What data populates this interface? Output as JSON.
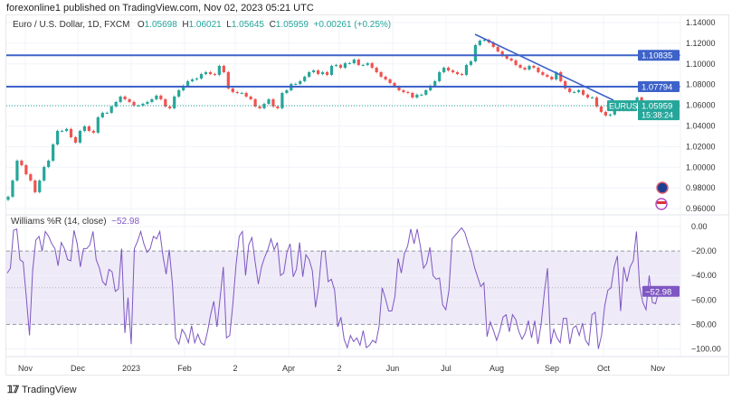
{
  "header": {
    "published": "forexonline1 published on TradingView.com, Nov 02, 2023 05:21 UTC"
  },
  "legend": {
    "symbol": "Euro / U.S. Dollar, 1D, FXCM",
    "o_label": "O",
    "o": "1.05698",
    "h_label": "H",
    "h": "1.06021",
    "l_label": "L",
    "l": "1.05645",
    "c_label": "C",
    "c": "1.05959",
    "change": "+0.00261 (+0.25%)"
  },
  "indicator": {
    "name": "Williams %R (14, close)",
    "value": "−52.98"
  },
  "colors": {
    "up": "#26a69a",
    "down": "#ef5350",
    "level_line": "#3d62c9",
    "wr_line": "#7e57c2",
    "wr_band": "#efeaf8"
  },
  "footer": {
    "brand": "TradingView",
    "logo": "17"
  },
  "chart_data": [
    {
      "type": "candlestick",
      "symbol": "EURUSD",
      "ylim": [
        0.955,
        1.145
      ],
      "y_ticks": [
        "1.14000",
        "1.12000",
        "1.10000",
        "1.08000",
        "1.06000",
        "1.04000",
        "1.02000",
        "1.00000",
        "0.98000",
        "0.96000"
      ],
      "x_ticks": [
        "Nov",
        "Dec",
        "2023",
        "Feb",
        "2",
        "Apr",
        "2",
        "Jun",
        "Jul",
        "Aug",
        "Sep",
        "Oct",
        "Nov"
      ],
      "closes": [
        0.9715,
        0.9872,
        1.0064,
        1.002,
        0.9933,
        0.9872,
        0.9759,
        0.9872,
        1.0003,
        1.0064,
        1.0221,
        1.0352,
        1.0352,
        1.037,
        1.0291,
        1.0239,
        1.0352,
        1.0396,
        1.0352,
        1.0335,
        1.0483,
        1.0527,
        1.0527,
        1.0588,
        1.0632,
        1.0684,
        1.0658,
        1.0632,
        1.0597,
        1.0597,
        1.0614,
        1.0632,
        1.0658,
        1.0693,
        1.0658,
        1.0588,
        1.0571,
        1.0684,
        1.0745,
        1.0789,
        1.0833,
        1.085,
        1.0859,
        1.0902,
        1.092,
        1.0902,
        1.0894,
        1.0981,
        1.092,
        1.0763,
        1.0728,
        1.0719,
        1.0719,
        1.0684,
        1.0658,
        1.0588,
        1.0571,
        1.0614,
        1.0658,
        1.0588,
        1.0571,
        1.0719,
        1.0745,
        1.0806,
        1.0806,
        1.0833,
        1.0876,
        1.092,
        1.0937,
        1.0902,
        1.092,
        1.0894,
        1.0981,
        1.099,
        1.0963,
        1.1007,
        1.1007,
        1.1042,
        1.099,
        1.099,
        1.1007,
        1.0963,
        1.092,
        1.0876,
        1.085,
        1.0815,
        1.078,
        1.0745,
        1.0728,
        1.0719,
        1.0675,
        1.0702,
        1.0702,
        1.0745,
        1.0789,
        1.0833,
        1.092,
        1.0963,
        1.0937,
        1.092,
        1.0902,
        1.0894,
        1.099,
        1.1025,
        1.1182,
        1.1225,
        1.1234,
        1.1208,
        1.1164,
        1.1121,
        1.1077,
        1.1051,
        1.1033,
        1.099,
        1.0963,
        1.0946,
        1.0981,
        1.0963,
        1.092,
        1.0894,
        1.0876,
        1.085,
        1.092,
        1.0833,
        1.0763,
        1.0728,
        1.0728,
        1.0745,
        1.0702,
        1.0675,
        1.0675,
        1.0588,
        1.0536,
        1.0501,
        1.051,
        1.0553,
        1.0588,
        1.0553,
        1.0588,
        1.0632,
        1.0675,
        1.0588,
        1.0571,
        1.0588,
        1.0596
      ],
      "horizontal_levels": [
        {
          "price": 1.10835,
          "label": "1.10835"
        },
        {
          "price": 1.07794,
          "label": "1.07794"
        }
      ],
      "trendline": {
        "from": {
          "date": "Jul",
          "price": 1.13
        },
        "to": {
          "date": "Oct",
          "price": 1.066
        }
      },
      "last_price": {
        "symbol_label": "EURUSD",
        "price": "1.05959",
        "countdown": "15:38:24"
      }
    },
    {
      "type": "line",
      "name": "Williams %R (14, close)",
      "ylim": [
        -100,
        0
      ],
      "y_ticks": [
        "0.00",
        "−20.00",
        "−40.00",
        "−60.00",
        "−80.00",
        "−100.00"
      ],
      "band": [
        -80,
        -20
      ],
      "values": [
        -38,
        -34,
        -3,
        -2,
        -27,
        -29,
        -58,
        -89,
        -36,
        -11,
        -8,
        -20,
        -4,
        -8,
        -14,
        -18,
        -32,
        -13,
        -18,
        -27,
        -28,
        -3,
        -14,
        -33,
        -18,
        -18,
        -15,
        -4,
        -27,
        -34,
        -45,
        -48,
        -35,
        -37,
        -53,
        -51,
        -18,
        -87,
        -58,
        -96,
        -18,
        -12,
        -4,
        -14,
        -21,
        -18,
        -8,
        -10,
        -4,
        -24,
        -39,
        -19,
        -47,
        -91,
        -96,
        -84,
        -88,
        -95,
        -81,
        -95,
        -88,
        -95,
        -97,
        -86,
        -72,
        -61,
        -82,
        -58,
        -33,
        -91,
        -89,
        -63,
        -31,
        -8,
        -4,
        -40,
        -15,
        -9,
        -29,
        -47,
        -33,
        -25,
        -19,
        -10,
        -19,
        -13,
        -40,
        -38,
        -21,
        -14,
        -41,
        -35,
        -13,
        -41,
        -23,
        -27,
        -36,
        -66,
        -49,
        -20,
        -20,
        -45,
        -43,
        -52,
        -82,
        -74,
        -92,
        -99,
        -89,
        -94,
        -91,
        -97,
        -85,
        -99,
        -97,
        -93,
        -95,
        -82,
        -50,
        -59,
        -69,
        -69,
        -57,
        -26,
        -38,
        -22,
        -16,
        -2,
        -14,
        -2,
        -16,
        -34,
        -30,
        -17,
        -40,
        -43,
        -42,
        -64,
        -68,
        -52,
        -10,
        -7,
        -4,
        -1,
        -5,
        -14,
        -21,
        -33,
        -41,
        -49,
        -46,
        -90,
        -78,
        -85,
        -93,
        -85,
        -74,
        -72,
        -86,
        -72,
        -76,
        -86,
        -92,
        -87,
        -77,
        -91,
        -77,
        -96,
        -80,
        -54,
        -34,
        -96,
        -84,
        -91,
        -95,
        -75,
        -75,
        -96,
        -83,
        -81,
        -89,
        -79,
        -93,
        -97,
        -72,
        -70,
        -100,
        -89,
        -65,
        -52,
        -50,
        -33,
        -24,
        -69,
        -33,
        -45,
        -33,
        -28,
        -4,
        -49,
        -62,
        -68,
        -40,
        -62,
        -63,
        -53
      ],
      "last_value": "−52.98"
    }
  ]
}
